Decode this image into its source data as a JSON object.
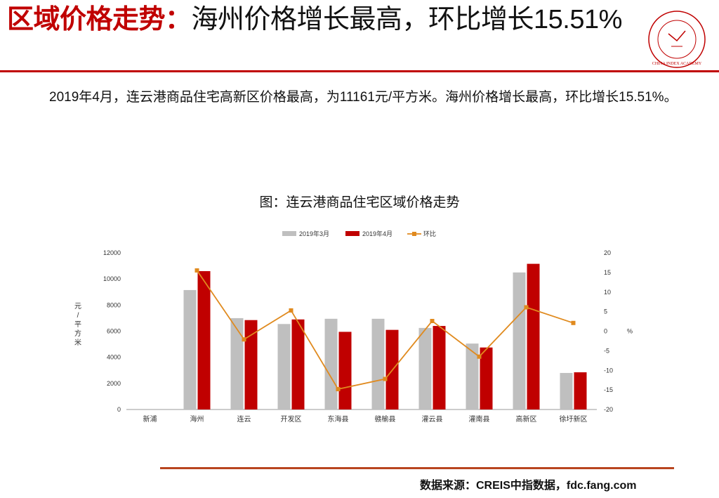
{
  "header": {
    "title_accent": "区域价格走势：",
    "title_rest": "海州价格增长最高，环比增长15.51%",
    "logo_text": "CHINA INDEX ACADEMY",
    "logo_center": "中 指"
  },
  "summary": "2019年4月，连云港商品住宅高新区价格最高，为11161元/平方米。海州价格增长最高，环比增长15.51%。",
  "chart_caption": "图：连云港商品住宅区域价格走势",
  "footer": {
    "source": "数据来源：CREIS中指数据，fdc.fang.com"
  },
  "colors": {
    "accent": "#c00000",
    "march": "#bfbfbf",
    "april": "#c00000",
    "mom": "#e08a1e"
  },
  "chart_data": {
    "type": "bar",
    "categories": [
      "新浦",
      "海州",
      "连云",
      "开发区",
      "东海县",
      "赣榆县",
      "灌云县",
      "灌南县",
      "高新区",
      "徐圩新区"
    ],
    "series": [
      {
        "name": "2019年3月",
        "type": "bar",
        "axis": "left",
        "values": [
          null,
          9150,
          7000,
          6550,
          6950,
          6950,
          6250,
          5050,
          10500,
          2800
        ]
      },
      {
        "name": "2019年4月",
        "type": "bar",
        "axis": "left",
        "values": [
          null,
          10600,
          6850,
          6900,
          5950,
          6100,
          6400,
          4750,
          11161,
          2850
        ]
      },
      {
        "name": "环比",
        "type": "line",
        "axis": "right",
        "values": [
          null,
          15.51,
          -2.1,
          5.3,
          -14.8,
          -12.2,
          2.6,
          -6.5,
          6.1,
          2.1
        ]
      }
    ],
    "ylabel": "元/平方米",
    "ylabel_right": "%",
    "ylim": [
      0,
      12000
    ],
    "y_ticks": [
      0,
      2000,
      4000,
      6000,
      8000,
      10000,
      12000
    ],
    "y2lim": [
      -20,
      20
    ],
    "y2_ticks": [
      -20,
      -15,
      -10,
      -5,
      0,
      5,
      10,
      15,
      20
    ],
    "legend_position": "top",
    "grid": false
  }
}
